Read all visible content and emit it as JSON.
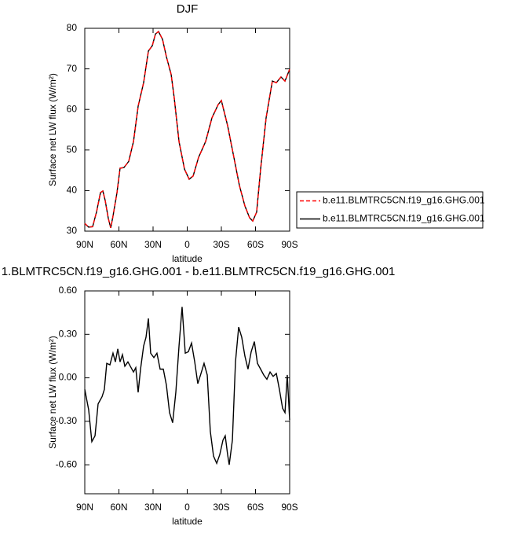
{
  "chart_data": [
    {
      "type": "line",
      "title": "DJF",
      "xlabel": "latitude",
      "ylabel": "Surface net LW flux (W/m²)",
      "x": [
        90,
        86.6,
        83.1,
        79.7,
        76.2,
        74.1,
        72.1,
        69.3,
        67.2,
        65.2,
        61.7,
        59,
        55.5,
        51.4,
        47.2,
        43.1,
        38.3,
        34.1,
        30.7,
        27.9,
        25.2,
        21.7,
        18.3,
        14.1,
        11.4,
        7.2,
        2.4,
        -1.7,
        -5.2,
        -10,
        -16.2,
        -21.7,
        -27.2,
        -30,
        -35.5,
        -41,
        -45.9,
        -50.7,
        -54.8,
        -57.6,
        -61,
        -64.5,
        -69.3,
        -74.8,
        -78.3,
        -82.4,
        -85.9,
        -90
      ],
      "series": [
        {
          "name": "b.e11.BLMTRC5CN.f19_g16.GHG.001",
          "color": "#ff0000",
          "line_style": "dashed",
          "values": [
            31.9,
            31,
            31.1,
            34.7,
            39.5,
            39.9,
            37.6,
            33.1,
            30.8,
            33.7,
            39.5,
            45.5,
            45.7,
            47.2,
            52.1,
            60.8,
            66.6,
            74.4,
            75.7,
            78.6,
            79.2,
            77.3,
            73,
            68.6,
            62.8,
            52.1,
            45.3,
            42.8,
            43.6,
            48.2,
            52.1,
            57.9,
            61.2,
            62.2,
            56,
            48.2,
            41.2,
            36.2,
            33.3,
            32.5,
            34.7,
            45.3,
            57.9,
            67,
            66.6,
            68,
            67,
            69.9
          ]
        },
        {
          "name": "b.e11.BLMTRC5CN.f19_g16.GHG.001",
          "color": "#000000",
          "line_style": "solid",
          "values": [
            31.9,
            31,
            31.1,
            34.7,
            39.5,
            39.9,
            37.6,
            33.1,
            30.8,
            33.7,
            39.5,
            45.5,
            45.7,
            47.2,
            52.1,
            60.8,
            66.6,
            74.4,
            75.7,
            78.6,
            79.2,
            77.3,
            73,
            68.6,
            62.8,
            52.1,
            45.3,
            42.8,
            43.6,
            48.2,
            52.1,
            57.9,
            61.2,
            62.2,
            56,
            48.2,
            41.2,
            36.2,
            33.3,
            32.5,
            34.7,
            45.3,
            57.9,
            67,
            66.6,
            68,
            67,
            69.9
          ]
        }
      ],
      "legend": "right",
      "xlim": [
        90,
        -90
      ],
      "xticks": [
        {
          "value": 90,
          "label": "90N"
        },
        {
          "value": 60,
          "label": "60N"
        },
        {
          "value": 30,
          "label": "30N"
        },
        0,
        {
          "value": -30,
          "label": "30S"
        },
        {
          "value": -60,
          "label": "60S"
        },
        {
          "value": -90,
          "label": "90S"
        }
      ],
      "ylim": [
        30,
        80
      ],
      "yticks": [
        30,
        40,
        50,
        60,
        70,
        80
      ]
    },
    {
      "type": "line",
      "title": "1.BLMTRC5CN.f19_g16.GHG.001 - b.e11.BLMTRC5CN.f19_g16.GHG.001",
      "xlabel": "latitude",
      "ylabel": "Surface net LW flux (W/m²)",
      "x": [
        90,
        86.6,
        83.8,
        81,
        78.3,
        74.8,
        72.8,
        70.7,
        67.9,
        65.2,
        63.1,
        61,
        59,
        56.9,
        54.8,
        52.1,
        50,
        47.2,
        45.2,
        43.1,
        41,
        38.3,
        36.2,
        34.1,
        32.1,
        29.3,
        26.6,
        23.8,
        21,
        18.3,
        15.5,
        12.8,
        10,
        7.2,
        4.5,
        1.7,
        -1,
        -3.8,
        -6.6,
        -9.3,
        -12.1,
        -14.8,
        -17.6,
        -20.3,
        -23.1,
        -25.9,
        -28.6,
        -31.4,
        -33.4,
        -35.5,
        -36.9,
        -39.7,
        -42.4,
        -45.2,
        -47.9,
        -50.7,
        -53.4,
        -56.2,
        -59,
        -61.7,
        -64.5,
        -67.2,
        -70,
        -72.8,
        -75.5,
        -78.3,
        -81,
        -83.8,
        -85.9,
        -87.9,
        -90
      ],
      "series": [
        {
          "color": "#000000",
          "line_style": "solid",
          "values": [
            -0.08,
            -0.22,
            -0.44,
            -0.4,
            -0.18,
            -0.13,
            -0.08,
            0.1,
            0.09,
            0.17,
            0.11,
            0.2,
            0.11,
            0.16,
            0.08,
            0.11,
            0.08,
            0.04,
            0.07,
            -0.1,
            0.06,
            0.22,
            0.28,
            0.41,
            0.17,
            0.14,
            0.17,
            0.06,
            0.06,
            -0.05,
            -0.24,
            -0.31,
            -0.1,
            0.22,
            0.49,
            0.17,
            0.18,
            0.24,
            0.11,
            -0.04,
            0.03,
            0.1,
            0.02,
            -0.37,
            -0.54,
            -0.59,
            -0.53,
            -0.43,
            -0.4,
            -0.53,
            -0.6,
            -0.43,
            0.11,
            0.35,
            0.28,
            0.15,
            0.06,
            0.18,
            0.25,
            0.1,
            0.06,
            0.02,
            -0.01,
            0.04,
            0.01,
            0.03,
            -0.08,
            -0.21,
            -0.24,
            0.02,
            -0.29
          ]
        }
      ],
      "xlim": [
        90,
        -90
      ],
      "xticks": [
        {
          "value": 90,
          "label": "90N"
        },
        {
          "value": 60,
          "label": "60N"
        },
        {
          "value": 30,
          "label": "30N"
        },
        0,
        {
          "value": -30,
          "label": "30S"
        },
        {
          "value": -60,
          "label": "60S"
        },
        {
          "value": -90,
          "label": "90S"
        }
      ],
      "ylim": [
        -0.8,
        0.6
      ],
      "yticks": [
        {
          "value": -0.6,
          "label": "-0.60"
        },
        {
          "value": -0.3,
          "label": "-0.30"
        },
        {
          "value": 0,
          "label": "0.00"
        },
        {
          "value": 0.3,
          "label": "0.30"
        },
        {
          "value": 0.6,
          "label": "0.60"
        }
      ]
    }
  ]
}
